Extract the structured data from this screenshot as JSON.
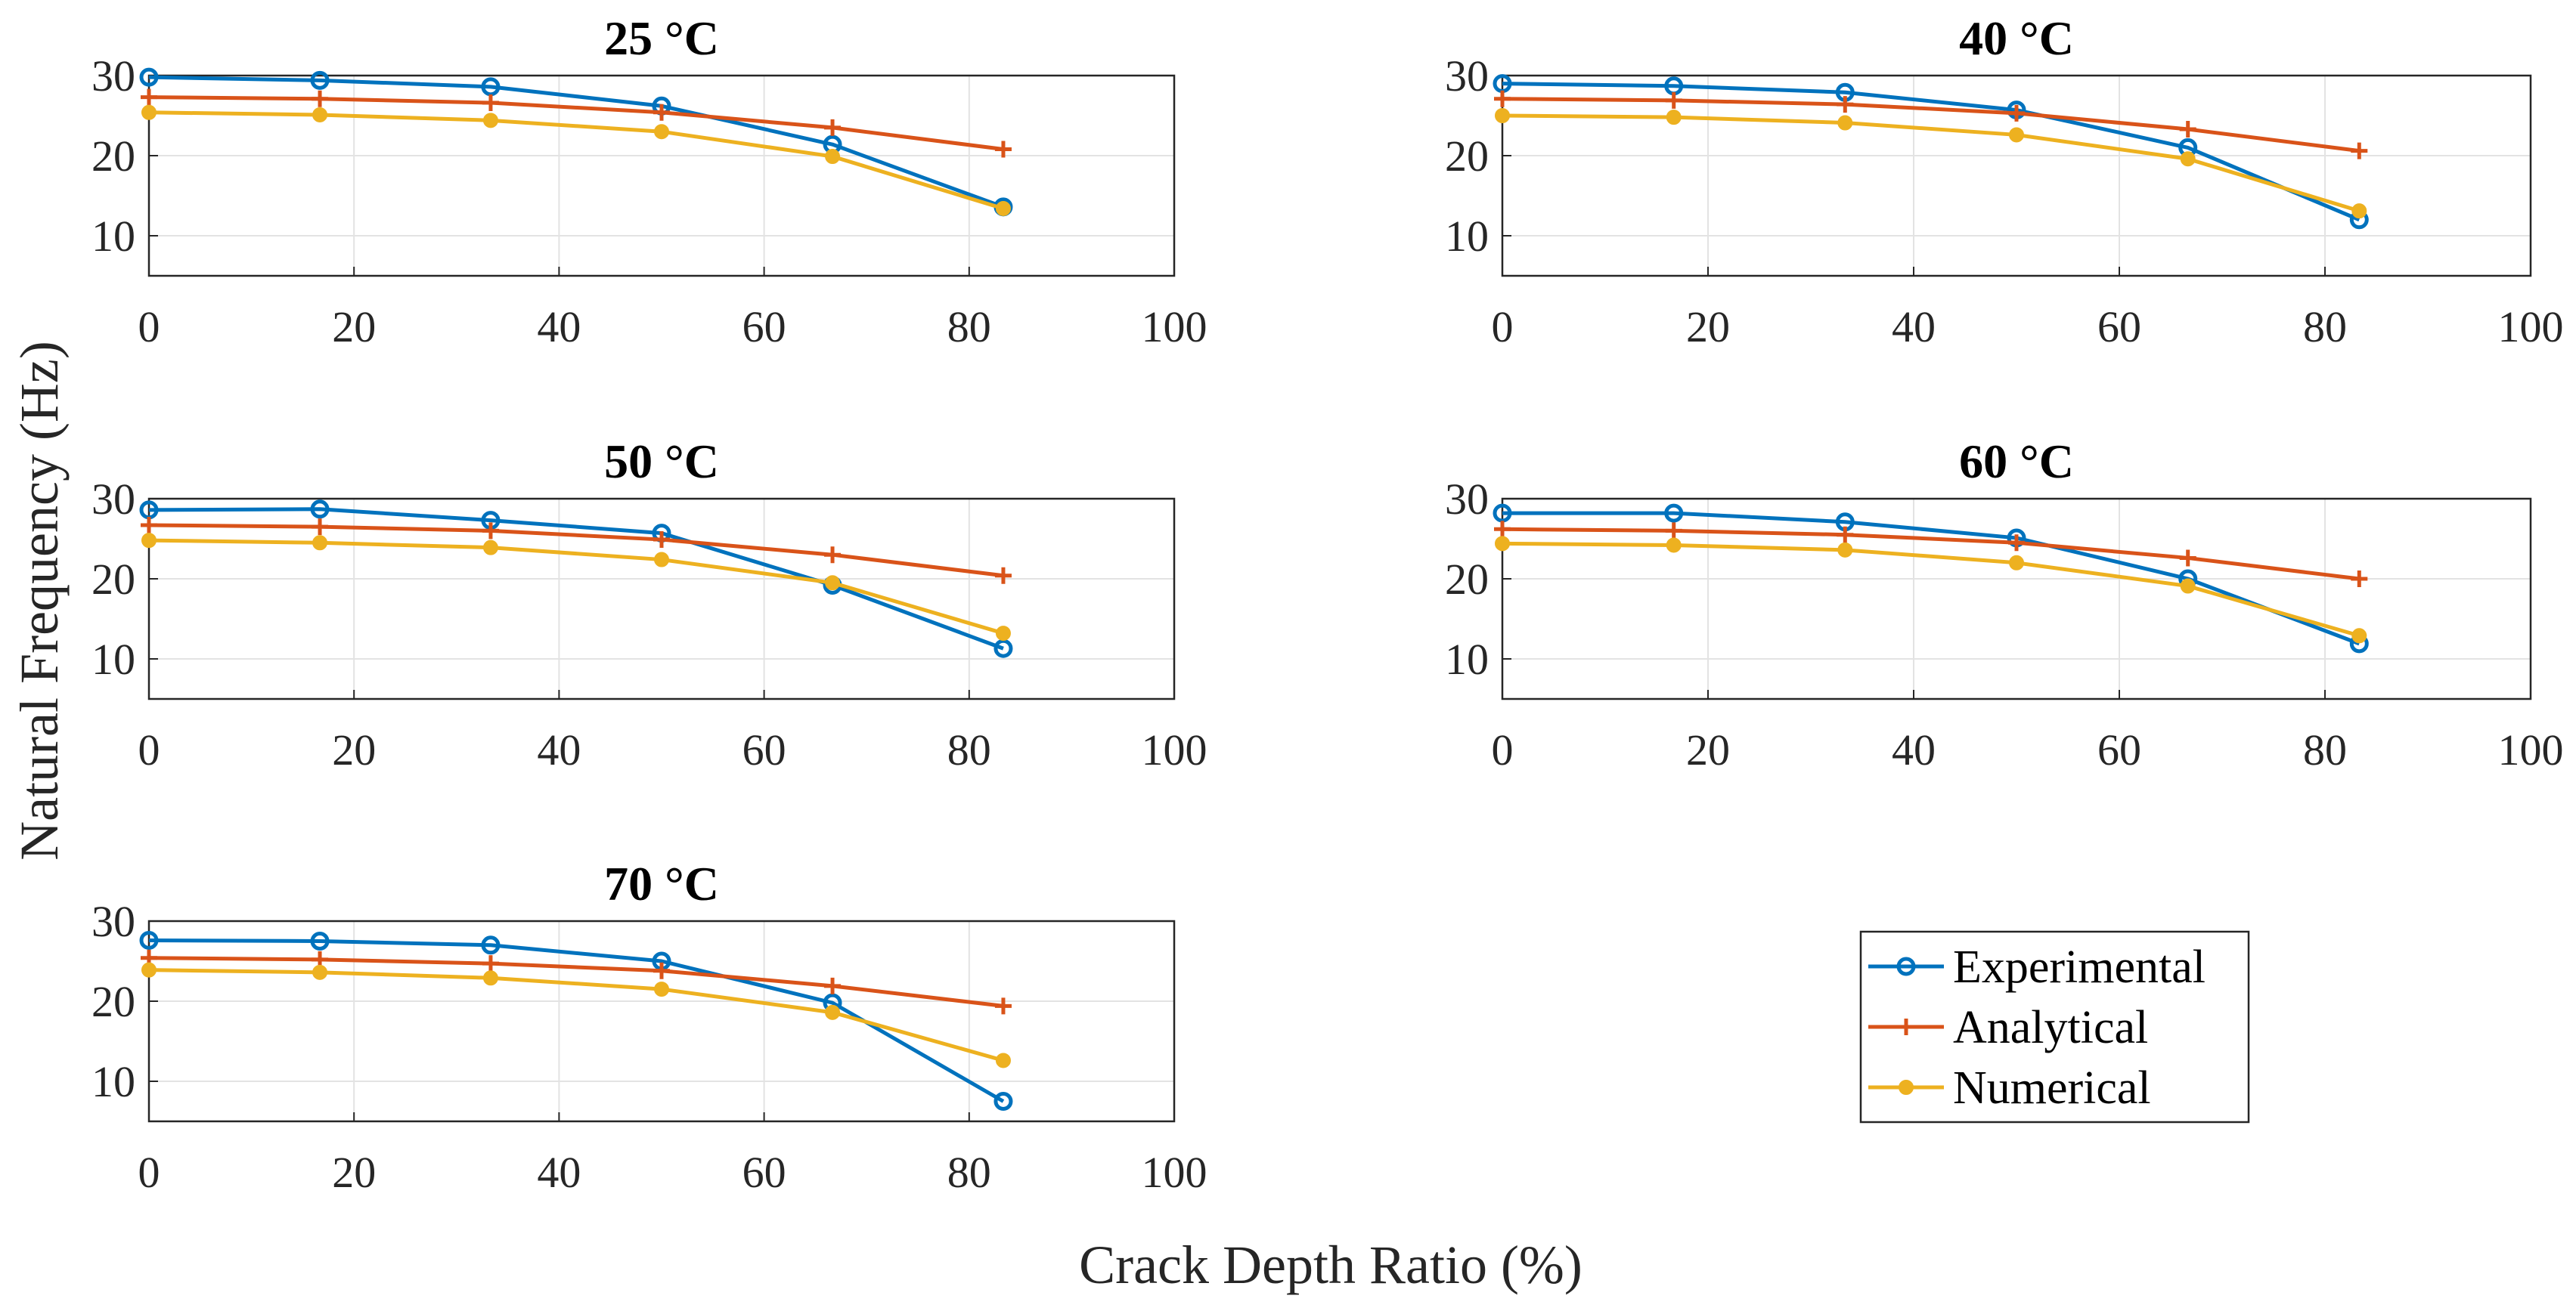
{
  "chart_data": {
    "type": "line",
    "ylabel": "Natural Frequency (Hz)",
    "xlabel": "Crack Depth Ratio (%)",
    "xlim": [
      0,
      100
    ],
    "ylim": [
      5,
      30
    ],
    "grid": true,
    "x": [
      0,
      16.67,
      33.33,
      50,
      66.67,
      83.33
    ],
    "xticks": [
      "0",
      "20",
      "40",
      "60",
      "80",
      "100"
    ],
    "yticks": [
      "10",
      "20",
      "30"
    ],
    "series_styles": [
      {
        "name": "Experimental",
        "color": "#0072BD",
        "marker": "circle"
      },
      {
        "name": "Analytical",
        "color": "#D95319",
        "marker": "plus"
      },
      {
        "name": "Numerical",
        "color": "#EDB120",
        "marker": "dot"
      }
    ],
    "legend": {
      "placement": "bottom-right",
      "entries": [
        "Experimental",
        "Analytical",
        "Numerical"
      ]
    },
    "panels": [
      {
        "title": "25 °C",
        "series": [
          {
            "name": "Experimental",
            "values": [
              29.8,
              29.4,
              28.6,
              26.2,
              21.4,
              13.6
            ]
          },
          {
            "name": "Analytical",
            "values": [
              27.3,
              27.1,
              26.6,
              25.4,
              23.5,
              20.8
            ]
          },
          {
            "name": "Numerical",
            "values": [
              25.4,
              25.1,
              24.4,
              23.0,
              19.9,
              13.4
            ]
          }
        ]
      },
      {
        "title": "40 °C",
        "series": [
          {
            "name": "Experimental",
            "values": [
              29.0,
              28.7,
              27.9,
              25.7,
              21.0,
              12.0
            ]
          },
          {
            "name": "Analytical",
            "values": [
              27.1,
              26.9,
              26.4,
              25.3,
              23.3,
              20.6
            ]
          },
          {
            "name": "Numerical",
            "values": [
              25.0,
              24.8,
              24.1,
              22.6,
              19.6,
              13.1
            ]
          }
        ]
      },
      {
        "title": "50 °C",
        "series": [
          {
            "name": "Experimental",
            "values": [
              28.6,
              28.7,
              27.3,
              25.7,
              19.2,
              11.3
            ]
          },
          {
            "name": "Analytical",
            "values": [
              26.7,
              26.5,
              26.0,
              24.9,
              23.0,
              20.4
            ]
          },
          {
            "name": "Numerical",
            "values": [
              24.8,
              24.5,
              23.9,
              22.4,
              19.5,
              13.2
            ]
          }
        ]
      },
      {
        "title": "60 °C",
        "series": [
          {
            "name": "Experimental",
            "values": [
              28.2,
              28.2,
              27.1,
              25.1,
              20.0,
              11.9
            ]
          },
          {
            "name": "Analytical",
            "values": [
              26.2,
              26.0,
              25.5,
              24.5,
              22.6,
              20.0
            ]
          },
          {
            "name": "Numerical",
            "values": [
              24.4,
              24.2,
              23.6,
              22.0,
              19.1,
              12.9
            ]
          }
        ]
      },
      {
        "title": "70 °C",
        "series": [
          {
            "name": "Experimental",
            "values": [
              27.6,
              27.5,
              27.0,
              25.0,
              19.8,
              7.5
            ]
          },
          {
            "name": "Analytical",
            "values": [
              25.4,
              25.2,
              24.7,
              23.8,
              21.9,
              19.4
            ]
          },
          {
            "name": "Numerical",
            "values": [
              23.9,
              23.6,
              22.9,
              21.5,
              18.6,
              12.6
            ]
          }
        ]
      }
    ]
  }
}
